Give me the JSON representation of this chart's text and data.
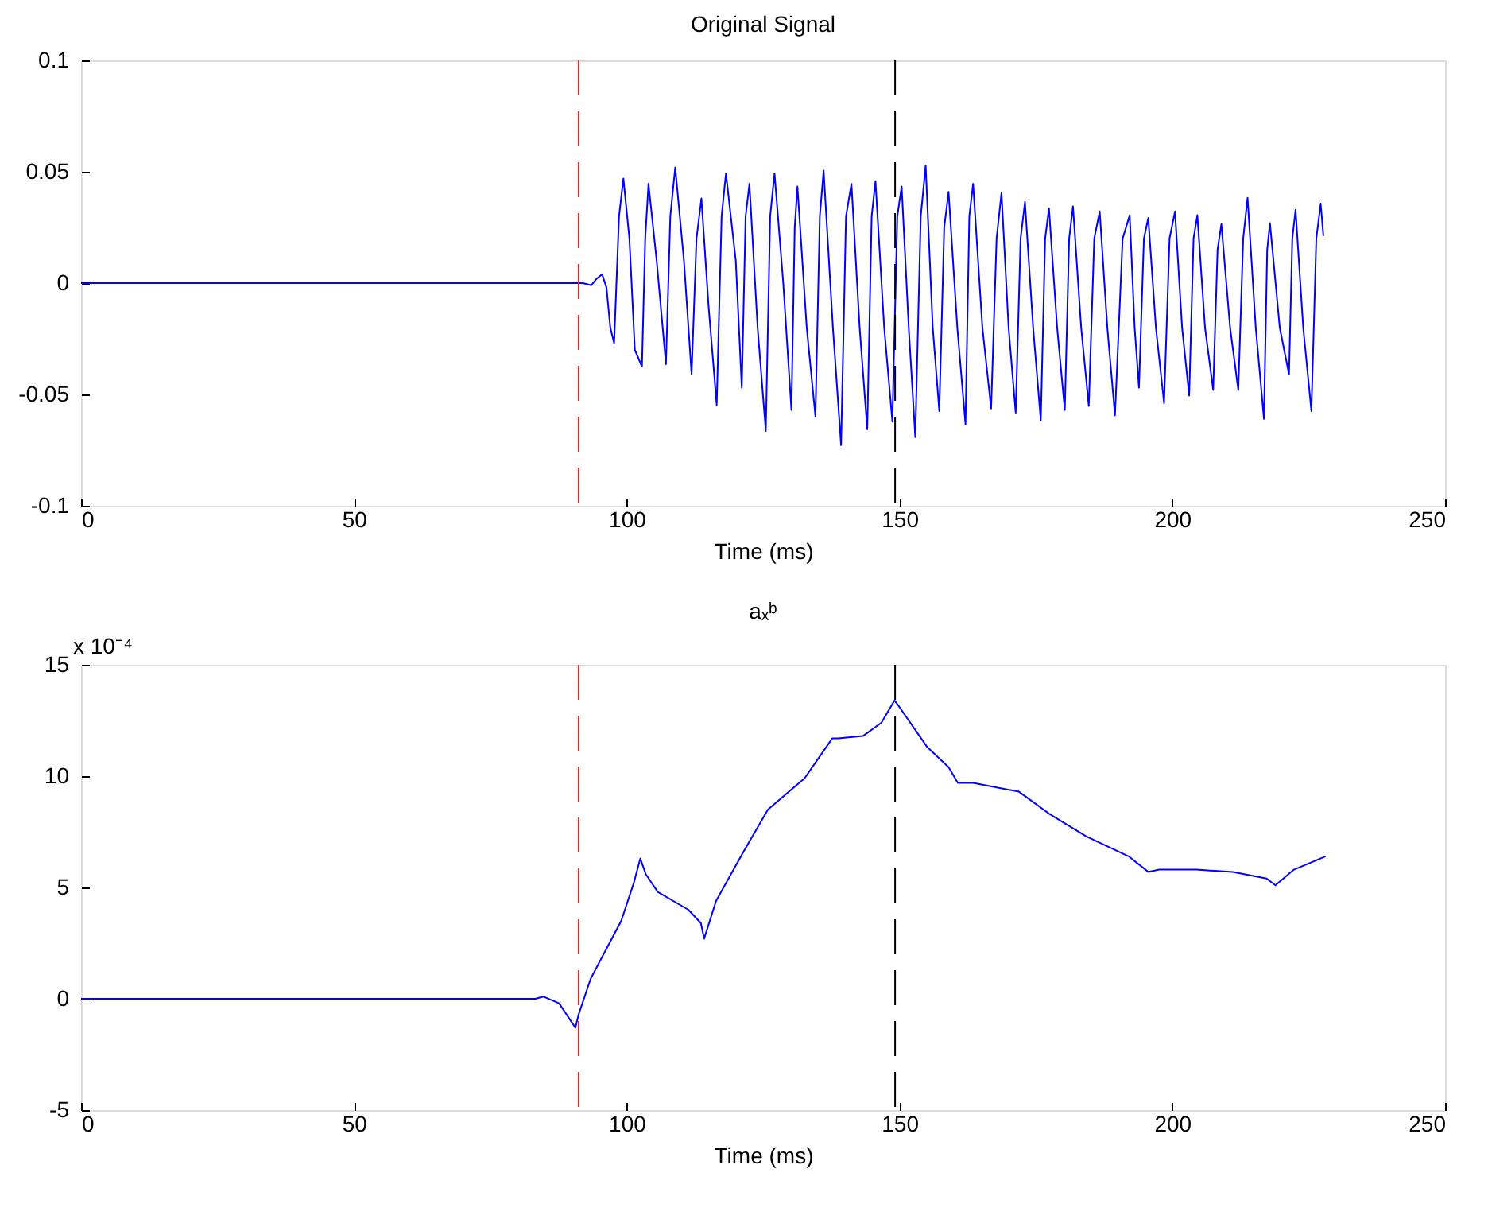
{
  "chart_data": [
    {
      "type": "line",
      "title": "Original Signal",
      "xlabel": "Time (ms)",
      "xlim": [
        0,
        250
      ],
      "xticks": [
        0,
        50,
        100,
        150,
        200,
        250
      ],
      "ylim": [
        -0.1,
        0.1
      ],
      "yticks": [
        -0.1,
        -0.05,
        0,
        0.05,
        0.1
      ],
      "grid": false,
      "marker": "none",
      "line_style": "solid",
      "series": [
        {
          "color": "#0000ff",
          "x": [
            0,
            92,
            93.5,
            94.5,
            95.5,
            96.3,
            97,
            97.7,
            98.6,
            99.4,
            100.5,
            101.5,
            102.8,
            103.4,
            104,
            105.5,
            107.2,
            108,
            108.9,
            110.5,
            111.9,
            112.8,
            113.7,
            115,
            116.5,
            117.4,
            118.2,
            120,
            121.1,
            121.8,
            122.5,
            124,
            125.5,
            126.3,
            127.1,
            128.7,
            130.2,
            130.8,
            131.3,
            133,
            134.6,
            135.4,
            136.1,
            137.8,
            139.3,
            140.2,
            141.2,
            142.7,
            144.1,
            144.9,
            145.6,
            147.2,
            148.7,
            149.6,
            150.4,
            151.7,
            152.9,
            153.9,
            154.8,
            156.1,
            157.3,
            158.2,
            159,
            160.6,
            162.1,
            162.8,
            163.5,
            165.2,
            166.8,
            167.8,
            168.7,
            170,
            171.3,
            172.2,
            173,
            174.5,
            175.9,
            176.7,
            177.4,
            178.9,
            180.3,
            181.1,
            181.8,
            183.3,
            184.7,
            185.7,
            186.7,
            188.1,
            189.5,
            190.9,
            192.2,
            193.1,
            193.9,
            194.8,
            195.6,
            197,
            198.5,
            199.5,
            200.5,
            201.8,
            203.1,
            203.9,
            204.6,
            206,
            207.5,
            208.3,
            209,
            210.6,
            212.1,
            213,
            213.8,
            215.3,
            216.8,
            217.4,
            217.9,
            219.7,
            221.4,
            222,
            222.6,
            224,
            225.5,
            226.4,
            227.2,
            227.7
          ],
          "values": [
            0,
            0,
            -0.001,
            0.002,
            0.004,
            -0.002,
            -0.02,
            -0.027,
            0.03,
            0.047,
            0.02,
            -0.03,
            -0.0375,
            0.02,
            0.0446,
            0.01,
            -0.0364,
            0.03,
            0.052,
            0.01,
            -0.041,
            0.02,
            0.038,
            -0.01,
            -0.0547,
            0.03,
            0.0493,
            0.01,
            -0.047,
            0.03,
            0.0446,
            -0.02,
            -0.0664,
            0.03,
            0.0493,
            0.0,
            -0.057,
            0.025,
            0.0434,
            -0.02,
            -0.06,
            0.03,
            0.0505,
            -0.02,
            -0.0728,
            0.03,
            0.0446,
            -0.02,
            -0.0657,
            0.03,
            0.0458,
            -0.02,
            -0.0622,
            0.03,
            0.0434,
            -0.02,
            -0.0692,
            0.03,
            0.0528,
            -0.02,
            -0.0575,
            0.025,
            0.041,
            -0.02,
            -0.0634,
            0.03,
            0.0446,
            -0.02,
            -0.0563,
            0.02,
            0.0406,
            -0.02,
            -0.0582,
            0.02,
            0.0364,
            -0.02,
            -0.0617,
            0.02,
            0.0336,
            -0.02,
            -0.057,
            0.02,
            0.0345,
            -0.02,
            -0.0552,
            0.02,
            0.0322,
            -0.02,
            -0.0594,
            0.02,
            0.0305,
            -0.02,
            -0.047,
            0.02,
            0.0293,
            -0.02,
            -0.054,
            0.02,
            0.0322,
            -0.02,
            -0.0505,
            0.02,
            0.0305,
            -0.02,
            -0.048,
            0.015,
            0.0265,
            -0.02,
            -0.048,
            0.02,
            0.0383,
            -0.02,
            -0.061,
            0.015,
            0.027,
            -0.02,
            -0.041,
            0.02,
            0.0329,
            -0.02,
            -0.0575,
            0.02,
            0.0357,
            0.0211
          ]
        }
      ],
      "ref_lines": [
        {
          "axis": "x",
          "value": 91.2,
          "color": "#e8262b",
          "line_style": "dashed"
        },
        {
          "axis": "x",
          "value": 149.2,
          "color": "#000000",
          "line_style": "dashed"
        }
      ]
    },
    {
      "type": "line",
      "title": "aₓᵇ",
      "xlabel": "Time (ms)",
      "xlim": [
        0,
        250
      ],
      "xticks": [
        0,
        50,
        100,
        150,
        200,
        250
      ],
      "ylim": [
        -5,
        15
      ],
      "yticks": [
        -5,
        0,
        5,
        10,
        15
      ],
      "grid": false,
      "marker": "none",
      "line_style": "solid",
      "annotations": [
        "x 10⁻⁴"
      ],
      "series": [
        {
          "color": "#0000ff",
          "x": [
            0,
            83.3,
            84.7,
            87.6,
            90.6,
            91.2,
            93.4,
            99,
            101.3,
            102.5,
            103.5,
            105.7,
            111.3,
            113.6,
            114.2,
            116.4,
            121.4,
            125.9,
            132.6,
            137.7,
            138.8,
            143.3,
            146.7,
            149.1,
            150,
            155.1,
            159,
            160.7,
            163.5,
            171.9,
            177.5,
            184.2,
            192,
            195.6,
            197.6,
            204.4,
            211.1,
            217.3,
            218.9,
            222.3,
            228.1
          ],
          "values": [
            0,
            0,
            0.1,
            -0.2,
            -1.3,
            -0.7,
            0.9,
            3.5,
            5.2,
            6.3,
            5.6,
            4.8,
            4.0,
            3.4,
            2.7,
            4.4,
            6.6,
            8.5,
            9.9,
            11.7,
            11.7,
            11.8,
            12.4,
            13.4,
            13.1,
            11.3,
            10.4,
            9.7,
            9.7,
            9.3,
            8.3,
            7.3,
            6.4,
            5.7,
            5.8,
            5.8,
            5.7,
            5.4,
            5.1,
            5.8,
            6.4
          ]
        }
      ],
      "ref_lines": [
        {
          "axis": "x",
          "value": 91.2,
          "color": "#e8262b",
          "line_style": "dashed"
        },
        {
          "axis": "x",
          "value": 149.2,
          "color": "#000000",
          "line_style": "dashed"
        }
      ]
    }
  ]
}
